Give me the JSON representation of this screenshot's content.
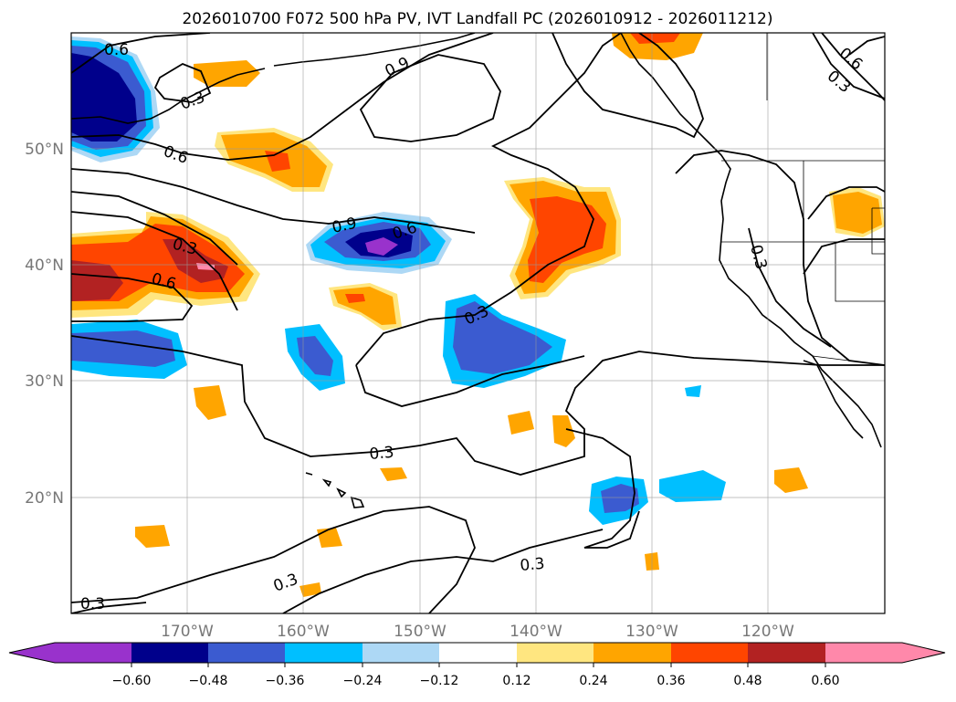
{
  "title": "2026010700 F072 500 hPa PV, IVT Landfall PC (2026010912 - 2026011212)",
  "map": {
    "lon_range": [
      -180,
      -110
    ],
    "lat_range": [
      10,
      60
    ],
    "lat_labels": [
      "20°N",
      "30°N",
      "40°N",
      "50°N"
    ],
    "lon_labels": [
      "170°W",
      "160°W",
      "150°W",
      "140°W",
      "130°W",
      "120°W"
    ],
    "contour_labels": [
      "0.6",
      "0.3",
      "0.6",
      "0.9",
      "0.9",
      "0.6",
      "0.3",
      "0.6",
      "0.3",
      "0.3",
      "0.3",
      "0.3",
      "0.3",
      "0.6",
      "0.3",
      "0.3"
    ]
  },
  "colorbar": {
    "ticks": [
      "−0.60",
      "−0.48",
      "−0.36",
      "−0.24",
      "−0.12",
      "0.12",
      "0.24",
      "0.36",
      "0.48",
      "0.60"
    ],
    "colors": [
      "#9932cc",
      "#00008b",
      "#3b5bd0",
      "#00bfff",
      "#add8f5",
      "#ffffff",
      "#ffe680",
      "#ffa500",
      "#ff4500",
      "#b22222",
      "#ff88aa"
    ]
  },
  "legend_colors": {
    "neg_extreme": "#9932cc",
    "neg_strong": "#00008b",
    "neg_mid": "#3b5bd0",
    "neg_weak": "#00bfff",
    "neg_faint": "#add8f5",
    "pos_faint": "#ffe680",
    "pos_weak": "#ffa500",
    "pos_mid": "#ff4500",
    "pos_strong": "#b22222",
    "pos_extreme": "#ff88aa"
  }
}
